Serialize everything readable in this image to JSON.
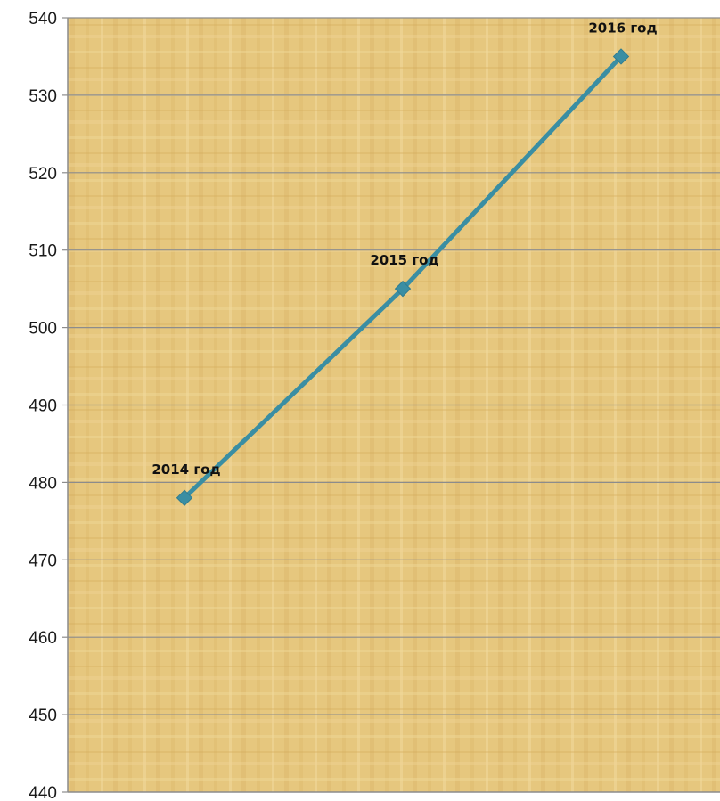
{
  "chart_data": {
    "type": "line",
    "title": "",
    "xlabel": "",
    "ylabel": "",
    "categories": [
      "2014 год",
      "2015 год",
      "2016 год"
    ],
    "series": [
      {
        "values": [
          478,
          505,
          535
        ]
      }
    ],
    "data_labels": [
      "2014 год",
      "2015 год",
      "2016 год"
    ],
    "y_ticks": [
      "440",
      "450",
      "460",
      "470",
      "480",
      "490",
      "500",
      "510",
      "520",
      "530",
      "540"
    ],
    "ylim": [
      440,
      540
    ],
    "grid": true,
    "legend": "none",
    "colors": {
      "line": "#3a8ea3",
      "marker": "#3a8ea3",
      "gridline": "#8c8c8c",
      "plot_background": "#e6c77e"
    }
  }
}
